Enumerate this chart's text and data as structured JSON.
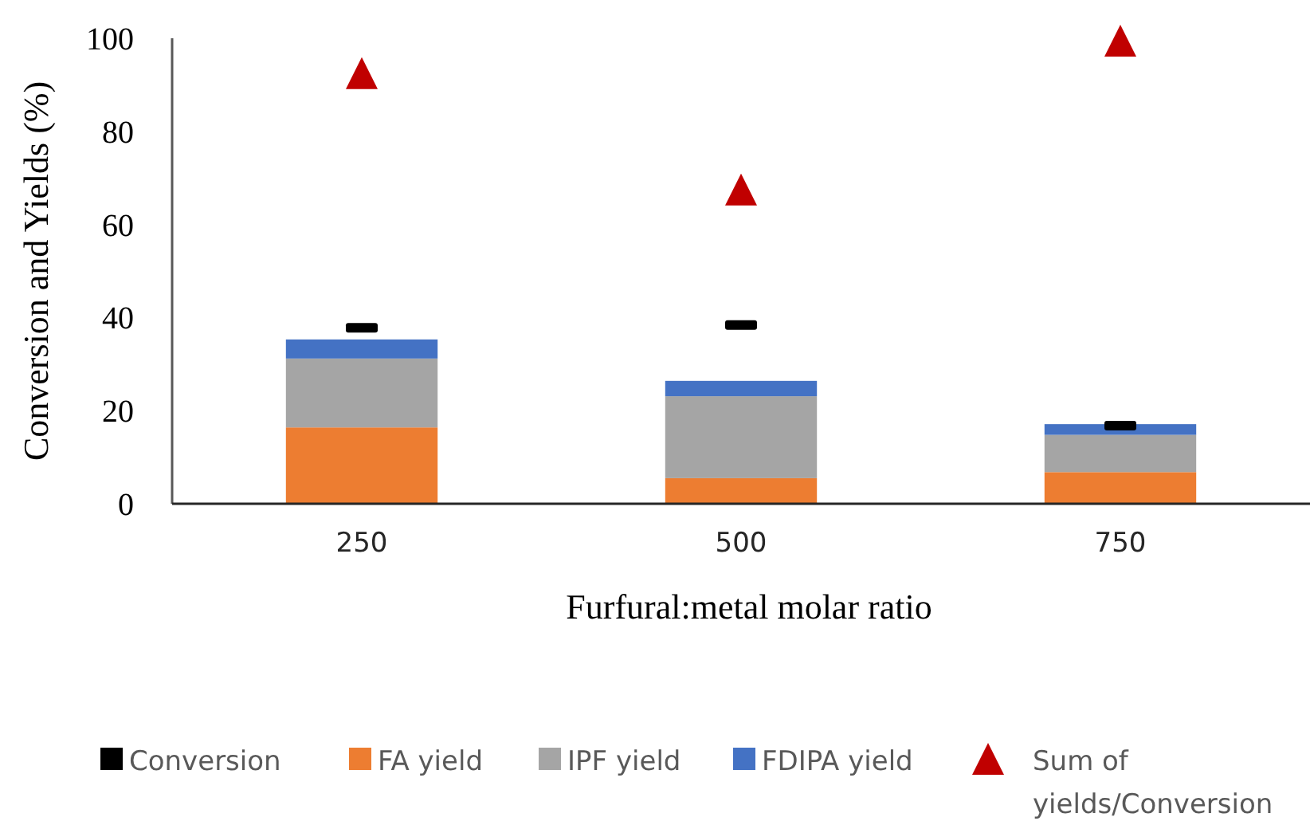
{
  "chart_data": {
    "type": "bar",
    "stacked": true,
    "xlabel": "Furfural:metal molar ratio",
    "ylabel": "Conversion and Yields (%)",
    "categories": [
      "250",
      "500",
      "750"
    ],
    "ylim": [
      0,
      100
    ],
    "yticks": [
      0,
      20,
      40,
      60,
      80,
      100
    ],
    "grid": false,
    "legend": "bottom",
    "series": [
      {
        "name": "Conversion",
        "type": "scatter",
        "marker": "square",
        "color": "#000000",
        "x": [
          "250",
          "500",
          "750"
        ],
        "values": [
          37.8,
          38.4,
          16.8
        ]
      },
      {
        "name": "FA yield",
        "color": "#ed7d31",
        "values": [
          16.4,
          5.5,
          6.8
        ]
      },
      {
        "name": "IPF yield",
        "color": "#a5a5a5",
        "values": [
          14.8,
          17.6,
          8.0
        ]
      },
      {
        "name": "FDIPA yield",
        "color": "#4472c4",
        "values": [
          4.1,
          3.3,
          2.3
        ]
      },
      {
        "name": "Sum of yields/Conversion",
        "type": "scatter",
        "marker": "triangle",
        "color": "#c00000",
        "x": [
          "250",
          "500",
          "750"
        ],
        "values": [
          92.5,
          67.5,
          99.5
        ]
      }
    ]
  }
}
